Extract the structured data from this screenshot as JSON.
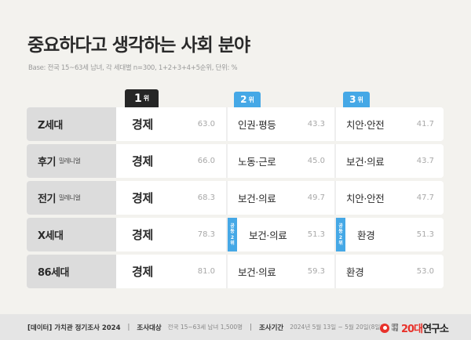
{
  "header": {
    "title": "중요하다고 생각하는 사회 분야",
    "base": "Base: 전국 15~63세 남녀, 각 세대별 n=300, 1+2+3+4+5순위, 단위: %"
  },
  "ranks": [
    {
      "num": "1",
      "suffix": "위",
      "color": "#262626"
    },
    {
      "num": "2",
      "suffix": "위",
      "color": "#45a8e6"
    },
    {
      "num": "3",
      "suffix": "위",
      "color": "#45a8e6"
    }
  ],
  "tie_badge": {
    "line1": "공",
    "line2": "동",
    "line3": "2",
    "line4": "위"
  },
  "rows": [
    {
      "gen": "Z세대",
      "sub": "",
      "r1": {
        "item": "경제",
        "val": "63.0"
      },
      "r2": {
        "item": "인권·평등",
        "val": "43.3"
      },
      "r3": {
        "item": "치안·안전",
        "val": "41.7"
      }
    },
    {
      "gen": "후기",
      "sub": "밀레니얼",
      "r1": {
        "item": "경제",
        "val": "66.0"
      },
      "r2": {
        "item": "노동·근로",
        "val": "45.0"
      },
      "r3": {
        "item": "보건·의료",
        "val": "43.7"
      }
    },
    {
      "gen": "전기",
      "sub": "밀레니얼",
      "r1": {
        "item": "경제",
        "val": "68.3"
      },
      "r2": {
        "item": "보건·의료",
        "val": "49.7"
      },
      "r3": {
        "item": "치안·안전",
        "val": "47.7"
      }
    },
    {
      "gen": "X세대",
      "sub": "",
      "r1": {
        "item": "경제",
        "val": "78.3"
      },
      "r2": {
        "item": "보건·의료",
        "val": "51.3",
        "tie": "공동 2위"
      },
      "r3": {
        "item": "환경",
        "val": "51.3",
        "tie": "공동 2위"
      }
    },
    {
      "gen": "86세대",
      "sub": "",
      "r1": {
        "item": "경제",
        "val": "81.0"
      },
      "r2": {
        "item": "보건·의료",
        "val": "59.3"
      },
      "r3": {
        "item": "환경",
        "val": "53.0"
      }
    }
  ],
  "footer": {
    "title": "[데이터] 가치관 정기조사 2024",
    "sep": "|",
    "target_label": "조사대상",
    "target_value": "전국 15~63세 남녀 1,500명",
    "period_label": "조사기간",
    "period_value": "2024년 5월 13일 ~ 5월 20일(8일간)",
    "logo": {
      "small_top": "대학",
      "small_bottom": "내일",
      "twenty": "20대",
      "rest": "연구소",
      "accent": "#e8322b"
    }
  },
  "chart_data": {
    "type": "table",
    "title": "중요하다고 생각하는 사회 분야",
    "subtitle": "Base: 전국 15~63세 남녀, 각 세대별 n=300, 1+2+3+4+5순위, 단위: %",
    "columns": [
      "세대",
      "1위",
      "1위 %",
      "2위",
      "2위 %",
      "3위",
      "3위 %"
    ],
    "rows": [
      [
        "Z세대",
        "경제",
        63.0,
        "인권·평등",
        43.3,
        "치안·안전",
        41.7
      ],
      [
        "후기 밀레니얼",
        "경제",
        66.0,
        "노동·근로",
        45.0,
        "보건·의료",
        43.7
      ],
      [
        "전기 밀레니얼",
        "경제",
        68.3,
        "보건·의료",
        49.7,
        "치안·안전",
        47.7
      ],
      [
        "X세대",
        "경제",
        78.3,
        "보건·의료 (공동 2위)",
        51.3,
        "환경 (공동 2위)",
        51.3
      ],
      [
        "86세대",
        "경제",
        81.0,
        "보건·의료",
        59.3,
        "환경",
        53.0
      ]
    ],
    "unit": "%"
  }
}
